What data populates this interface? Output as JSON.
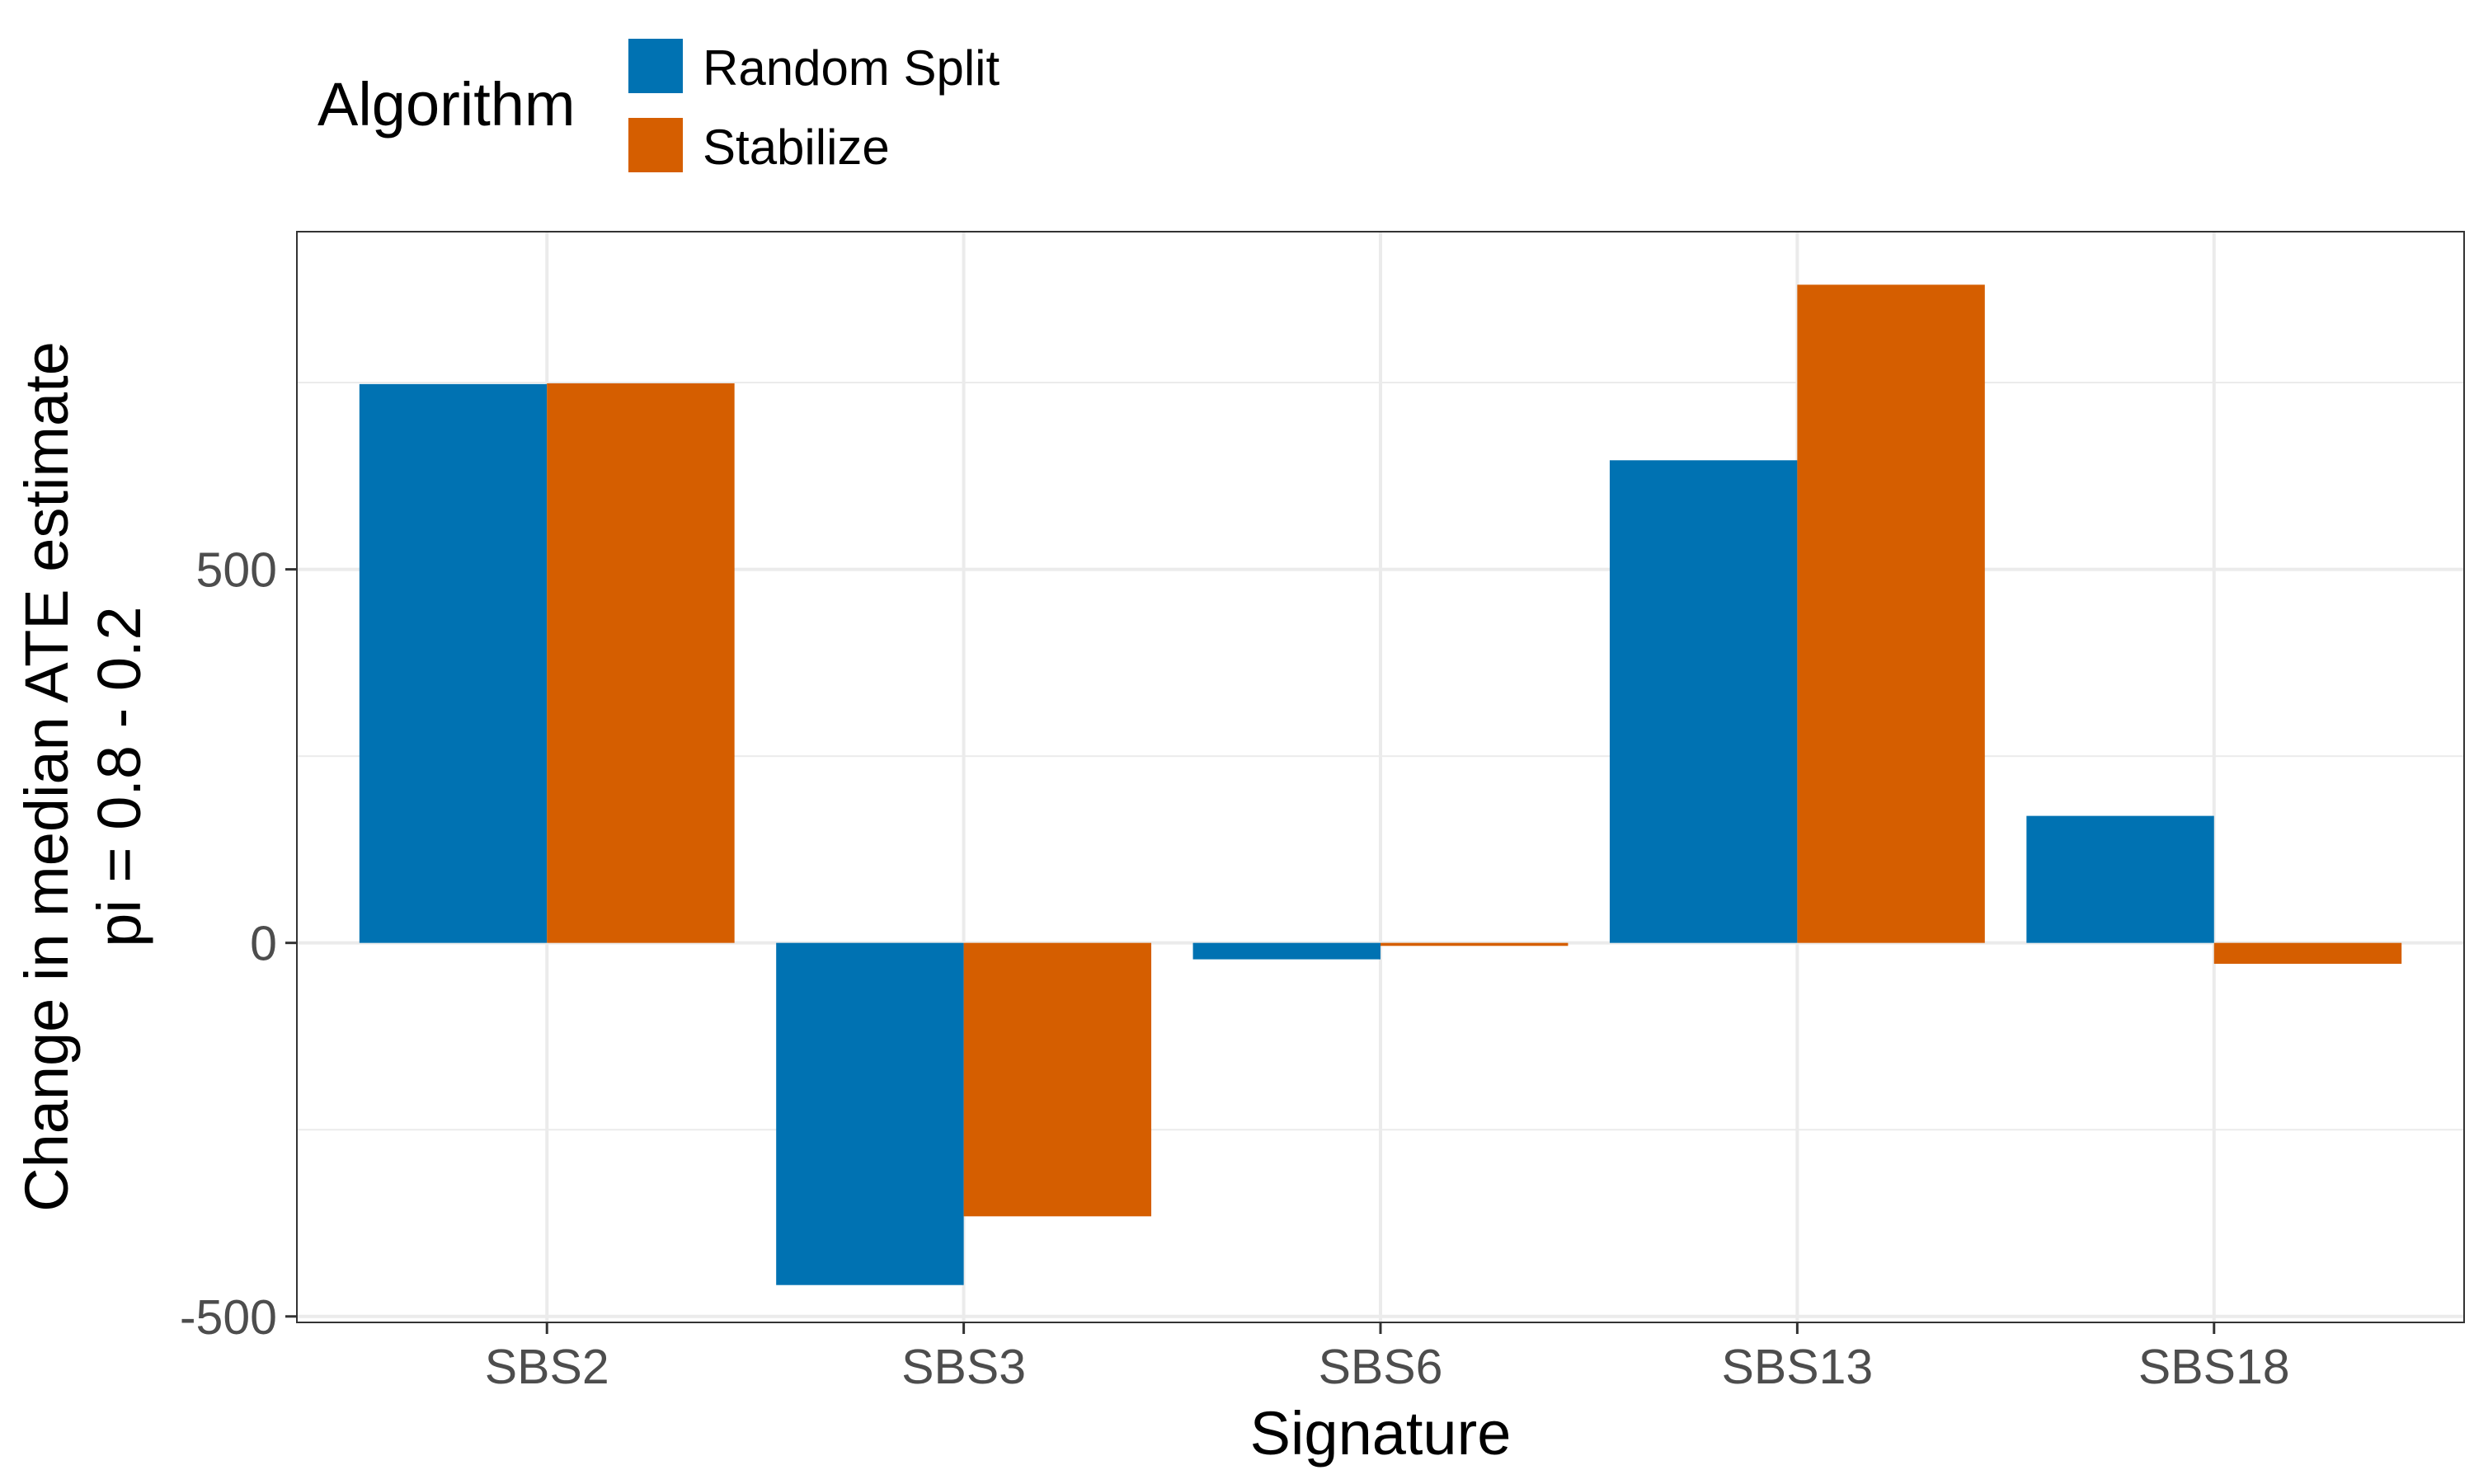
{
  "chart_data": {
    "type": "bar",
    "xlabel": "Signature",
    "ylabel_lines": [
      "Change in median ATE estimate",
      "pi = 0.8 - 0.2"
    ],
    "legend_title": "Algorithm",
    "legend_position": "top",
    "categories": [
      "SBS2",
      "SBS3",
      "SBS6",
      "SBS13",
      "SBS18"
    ],
    "series": [
      {
        "name": "Random Split",
        "color": "#0072B2",
        "values": [
          748,
          -458,
          -22,
          646,
          170
        ]
      },
      {
        "name": "Stabilize",
        "color": "#D55E00",
        "values": [
          749,
          -366,
          -4,
          881,
          -28
        ]
      }
    ],
    "ylim": [
      -508,
      952
    ],
    "yticks": [
      -500,
      0,
      500
    ],
    "ytick_labels": [
      "-500",
      "0",
      "500"
    ],
    "grid": true,
    "colors": {
      "grid": "#ebebeb",
      "panel_border": "#333333",
      "tick_text": "#4d4d4d"
    }
  }
}
